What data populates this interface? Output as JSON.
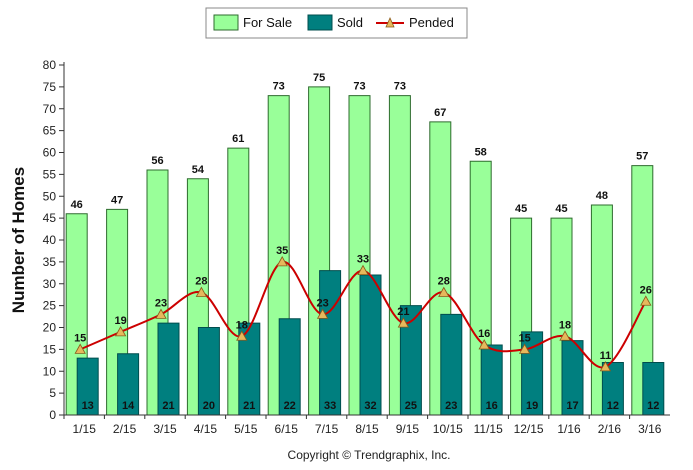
{
  "chart_data": {
    "type": "bar",
    "categories": [
      "1/15",
      "2/15",
      "3/15",
      "4/15",
      "5/15",
      "6/15",
      "7/15",
      "8/15",
      "9/15",
      "10/15",
      "11/15",
      "12/15",
      "1/16",
      "2/16",
      "3/16"
    ],
    "series": [
      {
        "name": "For Sale",
        "type": "bar",
        "color": "#99ff99",
        "values": [
          46,
          47,
          56,
          54,
          61,
          73,
          75,
          73,
          73,
          67,
          58,
          45,
          45,
          48,
          57
        ]
      },
      {
        "name": "Sold",
        "type": "bar",
        "color": "#007f7f",
        "values": [
          13,
          14,
          21,
          20,
          21,
          22,
          33,
          32,
          25,
          23,
          16,
          19,
          17,
          12,
          12
        ]
      },
      {
        "name": "Pended",
        "type": "line",
        "color": "#cc0000",
        "marker_color": "#e6b85c",
        "values": [
          15,
          19,
          23,
          28,
          18,
          35,
          23,
          33,
          21,
          28,
          16,
          15,
          18,
          11,
          26
        ]
      }
    ],
    "ylabel": "Number of Homes",
    "ylim": [
      0,
      80
    ],
    "yticks": [
      0,
      5,
      10,
      15,
      20,
      25,
      30,
      35,
      40,
      45,
      50,
      55,
      60,
      65,
      70,
      75,
      80
    ],
    "legend_position": "top-center",
    "grid": false,
    "footer": "Copyright © Trendgraphix, Inc."
  }
}
